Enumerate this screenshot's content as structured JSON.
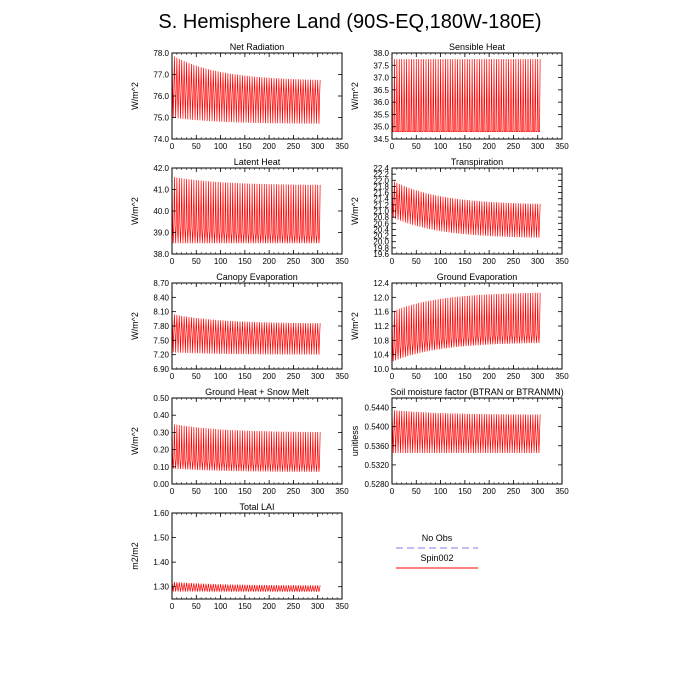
{
  "title": "S. Hemisphere Land (90S-EQ,180W-180E)",
  "colors": {
    "spin": "#ff0000",
    "obs": "#9999ee",
    "axis": "#000000"
  },
  "legend": {
    "entries": [
      "No Obs",
      "Spin002"
    ]
  },
  "chart_data": [
    {
      "type": "line",
      "title": "Net Radiation",
      "ylabel": "W/m^2",
      "xlim": [
        0,
        350
      ],
      "ylim": [
        74.0,
        78.0
      ],
      "xticks": [
        "0",
        "50",
        "100",
        "150",
        "200",
        "250",
        "300",
        "350"
      ],
      "yticks": [
        "74.0",
        "75.0",
        "76.0",
        "77.0",
        "78.0"
      ],
      "series": [
        {
          "name": "Spin002",
          "x_end": 305,
          "cycles": 61,
          "start_max": 77.9,
          "start_min": 75.0,
          "end_max": 76.7,
          "end_min": 74.7,
          "mid_hi_start": 76.3,
          "mid_hi_end": 75.9
        }
      ]
    },
    {
      "type": "line",
      "title": "Sensible Heat",
      "ylabel": "W/m^2",
      "xlim": [
        0,
        350
      ],
      "ylim": [
        34.5,
        38.0
      ],
      "xticks": [
        "0",
        "50",
        "100",
        "150",
        "200",
        "250",
        "300",
        "350"
      ],
      "yticks": [
        "34.5",
        "35.0",
        "35.5",
        "36.0",
        "36.5",
        "37.0",
        "37.5",
        "38.0"
      ],
      "series": [
        {
          "name": "Spin002",
          "x_end": 305,
          "cycles": 61,
          "start_max": 37.75,
          "start_min": 34.8,
          "end_max": 37.75,
          "end_min": 34.8,
          "mid_hi_start": 34.8,
          "mid_hi_end": 34.8
        }
      ]
    },
    {
      "type": "line",
      "title": "Latent Heat",
      "ylabel": "W/m^2",
      "xlim": [
        0,
        350
      ],
      "ylim": [
        38.0,
        42.0
      ],
      "xticks": [
        "0",
        "50",
        "100",
        "150",
        "200",
        "250",
        "300",
        "350"
      ],
      "yticks": [
        "38.0",
        "39.0",
        "40.0",
        "41.0",
        "42.0"
      ],
      "series": [
        {
          "name": "Spin002",
          "x_end": 305,
          "cycles": 61,
          "start_max": 41.6,
          "start_min": 38.5,
          "end_max": 41.2,
          "end_min": 38.5,
          "mid_hi_start": 39.4,
          "mid_hi_end": 38.9
        }
      ]
    },
    {
      "type": "line",
      "title": "Transpiration",
      "ylabel": "W/m^2",
      "xlim": [
        0,
        350
      ],
      "ylim": [
        19.6,
        22.4
      ],
      "xticks": [
        "0",
        "50",
        "100",
        "150",
        "200",
        "250",
        "300",
        "350"
      ],
      "yticks": [
        "19.6",
        "19.8",
        "20.0",
        "20.2",
        "20.4",
        "20.6",
        "20.8",
        "21.0",
        "21.2",
        "21.4",
        "21.6",
        "21.8",
        "22.0",
        "22.2",
        "22.4"
      ],
      "series": [
        {
          "name": "Spin002",
          "x_end": 305,
          "cycles": 61,
          "start_max": 22.0,
          "start_min": 20.8,
          "end_max": 21.2,
          "end_min": 20.1,
          "mid_hi_start": 21.3,
          "mid_hi_end": 20.6
        }
      ]
    },
    {
      "type": "line",
      "title": "Canopy Evaporation",
      "ylabel": "W/m^2",
      "xlim": [
        0,
        350
      ],
      "ylim": [
        6.9,
        8.7
      ],
      "xticks": [
        "0",
        "50",
        "100",
        "150",
        "200",
        "250",
        "300",
        "350"
      ],
      "yticks": [
        "6.90",
        "7.20",
        "7.50",
        "7.80",
        "8.10",
        "8.40",
        "8.70"
      ],
      "series": [
        {
          "name": "Spin002",
          "x_end": 305,
          "cycles": 61,
          "start_max": 8.05,
          "start_min": 7.25,
          "end_max": 7.85,
          "end_min": 7.2,
          "mid_hi_start": 7.7,
          "mid_hi_end": 7.55
        }
      ]
    },
    {
      "type": "line",
      "title": "Ground Evaporation",
      "ylabel": "W/m^2",
      "xlim": [
        0,
        350
      ],
      "ylim": [
        10.0,
        12.4
      ],
      "xticks": [
        "0",
        "50",
        "100",
        "150",
        "200",
        "250",
        "300",
        "350"
      ],
      "yticks": [
        "10.0",
        "10.4",
        "10.8",
        "11.2",
        "11.6",
        "12.0",
        "12.4"
      ],
      "series": [
        {
          "name": "Spin002",
          "x_end": 305,
          "cycles": 61,
          "start_max": 11.6,
          "start_min": 10.2,
          "end_max": 12.15,
          "end_min": 10.75,
          "mid_hi_start": 10.6,
          "mid_hi_end": 11.0
        }
      ]
    },
    {
      "type": "line",
      "title": "Ground Heat + Snow Melt",
      "ylabel": "W/m^2",
      "xlim": [
        0,
        350
      ],
      "ylim": [
        0.0,
        0.5
      ],
      "xticks": [
        "0",
        "50",
        "100",
        "150",
        "200",
        "250",
        "300",
        "350"
      ],
      "yticks": [
        "0.00",
        "0.10",
        "0.20",
        "0.30",
        "0.40",
        "0.50"
      ],
      "series": [
        {
          "name": "Spin002",
          "x_end": 305,
          "cycles": 61,
          "start_max": 0.35,
          "start_min": 0.09,
          "end_max": 0.3,
          "end_min": 0.07,
          "mid_hi_start": 0.15,
          "mid_hi_end": 0.12
        }
      ]
    },
    {
      "type": "line",
      "title": "Soil moisture factor (BTRAN or BTRANMN)",
      "ylabel": "unitless",
      "xlim": [
        0,
        350
      ],
      "ylim": [
        0.528,
        0.546
      ],
      "xticks": [
        "0",
        "50",
        "100",
        "150",
        "200",
        "250",
        "300",
        "350"
      ],
      "yticks": [
        "0.5280",
        "0.5320",
        "0.5360",
        "0.5400",
        "0.5440"
      ],
      "series": [
        {
          "name": "Spin002",
          "x_end": 305,
          "cycles": 61,
          "start_max": 0.5435,
          "start_min": 0.5345,
          "end_max": 0.5425,
          "end_min": 0.5345,
          "mid_hi_start": 0.539,
          "mid_hi_end": 0.538
        }
      ]
    },
    {
      "type": "line",
      "title": "Total LAI",
      "ylabel": "m2/m2",
      "xlim": [
        0,
        350
      ],
      "ylim": [
        1.25,
        1.6
      ],
      "xticks": [
        "0",
        "50",
        "100",
        "150",
        "200",
        "250",
        "300",
        "350"
      ],
      "yticks": [
        "1.30",
        "1.40",
        "1.50",
        "1.60"
      ],
      "series": [
        {
          "name": "Spin002",
          "x_end": 305,
          "cycles": 61,
          "start_max": 1.32,
          "start_min": 1.28,
          "end_max": 1.305,
          "end_min": 1.28,
          "mid_hi_start": 1.3,
          "mid_hi_end": 1.29
        }
      ]
    }
  ]
}
